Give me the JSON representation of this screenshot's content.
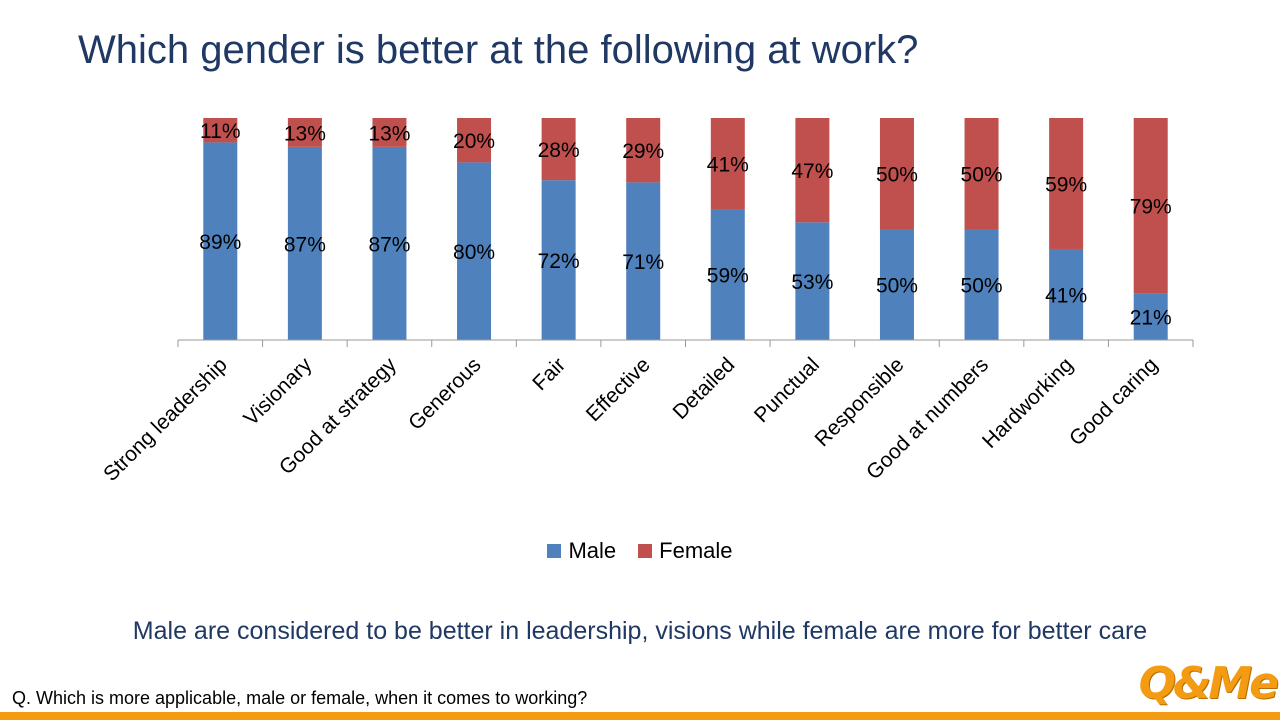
{
  "title": "Which gender is better at the following at work?",
  "colors": {
    "male": "#4F81BD",
    "female": "#C0504D",
    "brand": "#F39C12",
    "title": "#1F3864"
  },
  "chart_data": {
    "type": "bar",
    "stacked": true,
    "categories": [
      "Strong leadership",
      "Visionary",
      "Good at strategy",
      "Generous",
      "Fair",
      "Effective",
      "Detailed",
      "Punctual",
      "Responsible",
      "Good at numbers",
      "Hardworking",
      "Good caring"
    ],
    "series": [
      {
        "name": "Male",
        "values": [
          89,
          87,
          87,
          80,
          72,
          71,
          59,
          53,
          50,
          50,
          41,
          21
        ]
      },
      {
        "name": "Female",
        "values": [
          11,
          13,
          13,
          20,
          28,
          29,
          41,
          47,
          50,
          50,
          59,
          79
        ]
      }
    ],
    "ylim": [
      0,
      100
    ],
    "value_suffix": "%",
    "legend": "bottom"
  },
  "legend": {
    "male_label": "Male",
    "female_label": "Female"
  },
  "insight": "Male are considered to be better in leadership, visions while female are more for better care",
  "question": "Q. Which is more applicable, male or female, when it comes to working?",
  "logo_text": "Q&Me"
}
